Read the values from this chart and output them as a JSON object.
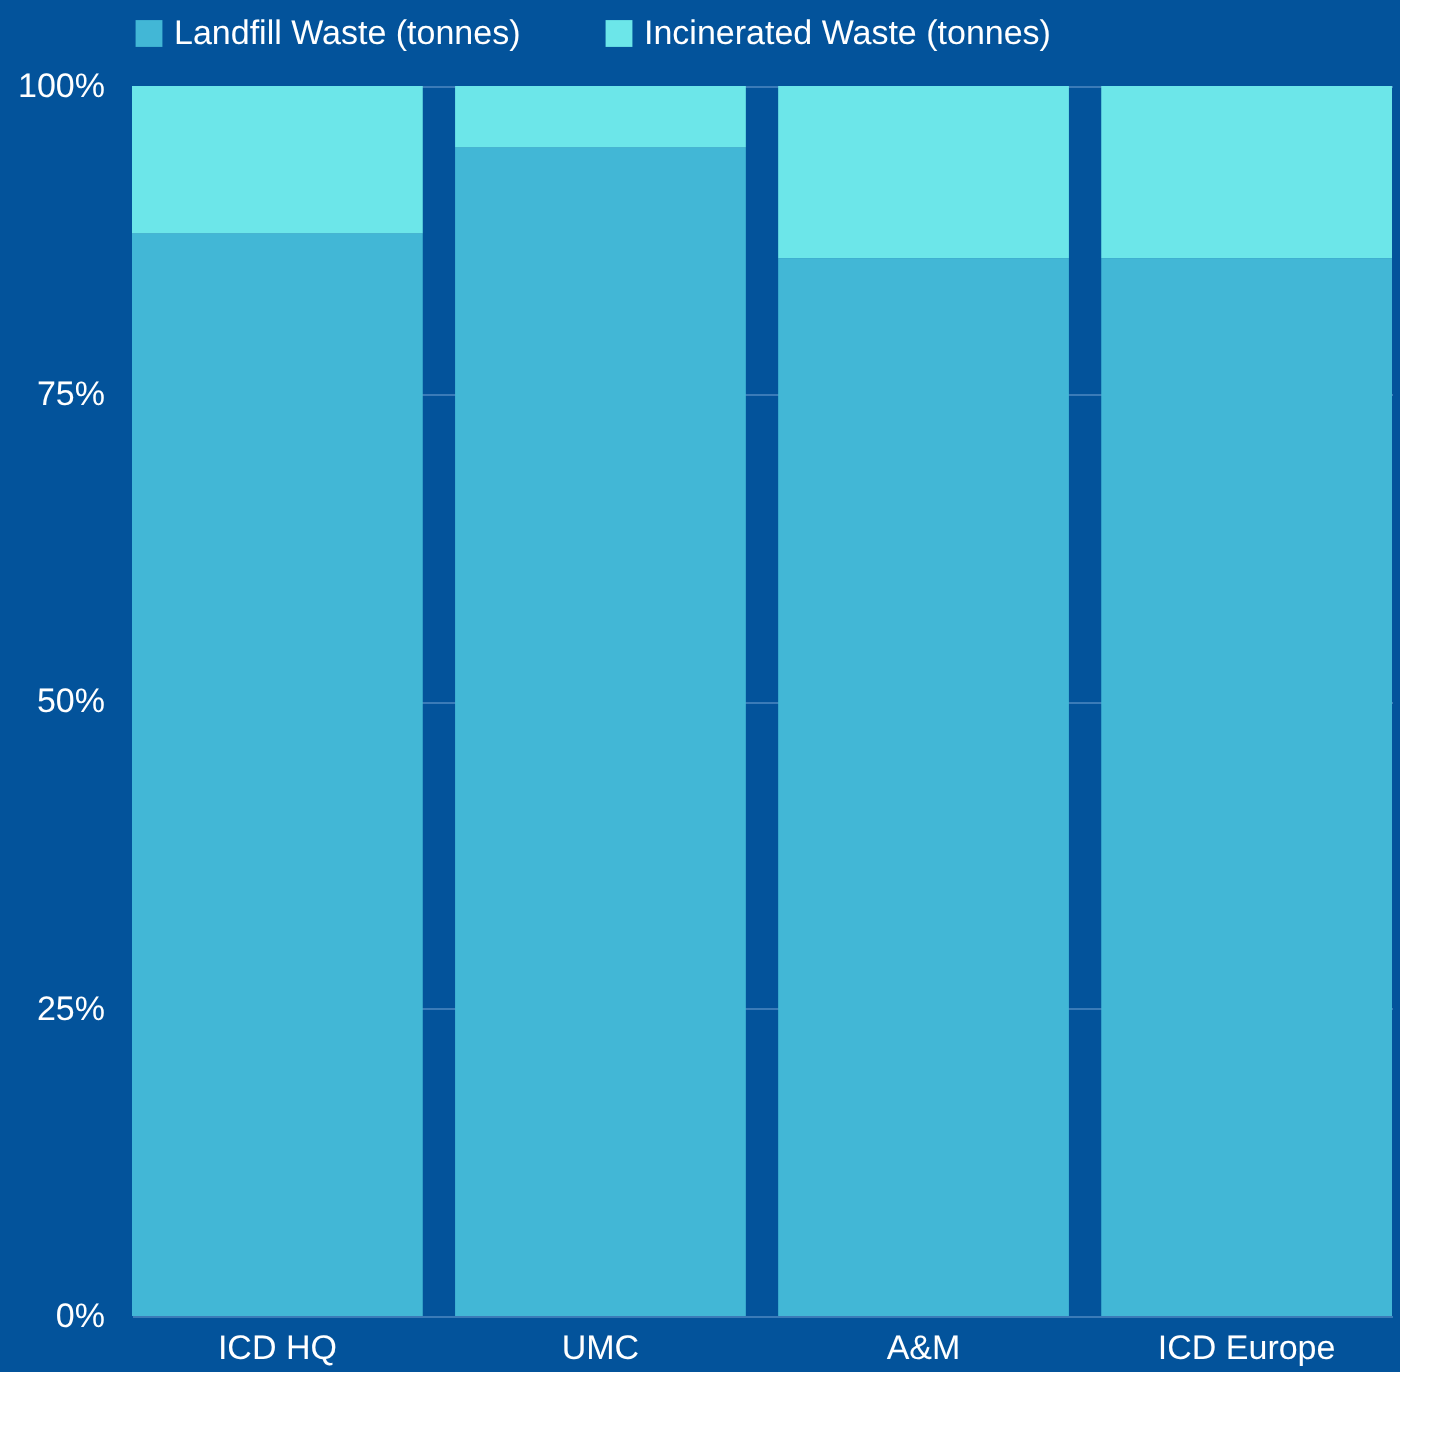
{
  "chart_data": {
    "type": "bar",
    "stacked": true,
    "categories": [
      "ICD HQ",
      "UMC",
      "A&M",
      "ICD Europe"
    ],
    "series": [
      {
        "name": "Landfill Waste (tonnes)",
        "color": "#42b7d6",
        "values": [
          88,
          95,
          86,
          86
        ]
      },
      {
        "name": "Incinerated Waste (tonnes)",
        "color": "#6ce6e9",
        "values": [
          12,
          5,
          14,
          14
        ]
      }
    ],
    "ylim": [
      0,
      100
    ],
    "yticks": [
      {
        "value": 0,
        "label": "0%"
      },
      {
        "value": 25,
        "label": "25%"
      },
      {
        "value": 50,
        "label": "50%"
      },
      {
        "value": 75,
        "label": "75%"
      },
      {
        "value": 100,
        "label": "100%"
      }
    ],
    "grid": "y",
    "legend": "top"
  }
}
